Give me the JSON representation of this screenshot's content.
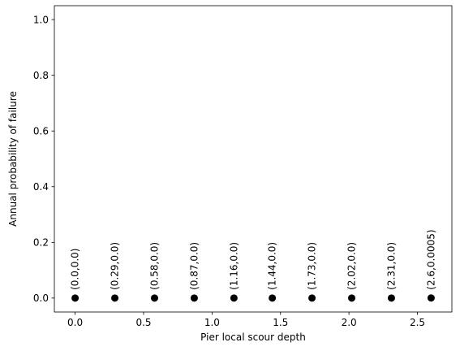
{
  "chart_data": {
    "type": "scatter",
    "title": "",
    "xlabel": "Pier local scour depth",
    "ylabel": "Annual probability of failure",
    "xlim": [
      -0.1517,
      2.7517
    ],
    "ylim": [
      -0.05,
      1.05
    ],
    "xticks": [
      0.0,
      0.5,
      1.0,
      1.5,
      2.0,
      2.5
    ],
    "xtick_labels": [
      "0.0",
      "0.5",
      "1.0",
      "1.5",
      "2.0",
      "2.5"
    ],
    "yticks": [
      0.0,
      0.2,
      0.4,
      0.6,
      0.8,
      1.0
    ],
    "ytick_labels": [
      "0.0",
      "0.2",
      "0.4",
      "0.6",
      "0.8",
      "1.0"
    ],
    "grid": false,
    "marker_color": "#000000",
    "points": [
      {
        "x": 0.0,
        "y": 0.0,
        "label": "(0.0,0.0)"
      },
      {
        "x": 0.29,
        "y": 0.0,
        "label": "(0.29,0.0)"
      },
      {
        "x": 0.58,
        "y": 0.0,
        "label": "(0.58,0.0)"
      },
      {
        "x": 0.87,
        "y": 0.0,
        "label": "(0.87,0.0)"
      },
      {
        "x": 1.16,
        "y": 0.0,
        "label": "(1.16,0.0)"
      },
      {
        "x": 1.44,
        "y": 0.0,
        "label": "(1.44,0.0)"
      },
      {
        "x": 1.73,
        "y": 0.0,
        "label": "(1.73,0.0)"
      },
      {
        "x": 2.02,
        "y": 0.0,
        "label": "(2.02,0.0)"
      },
      {
        "x": 2.31,
        "y": 0.0,
        "label": "(2.31,0.0)"
      },
      {
        "x": 2.6,
        "y": 0.0005,
        "label": "(2.6,0.0005)"
      }
    ]
  }
}
